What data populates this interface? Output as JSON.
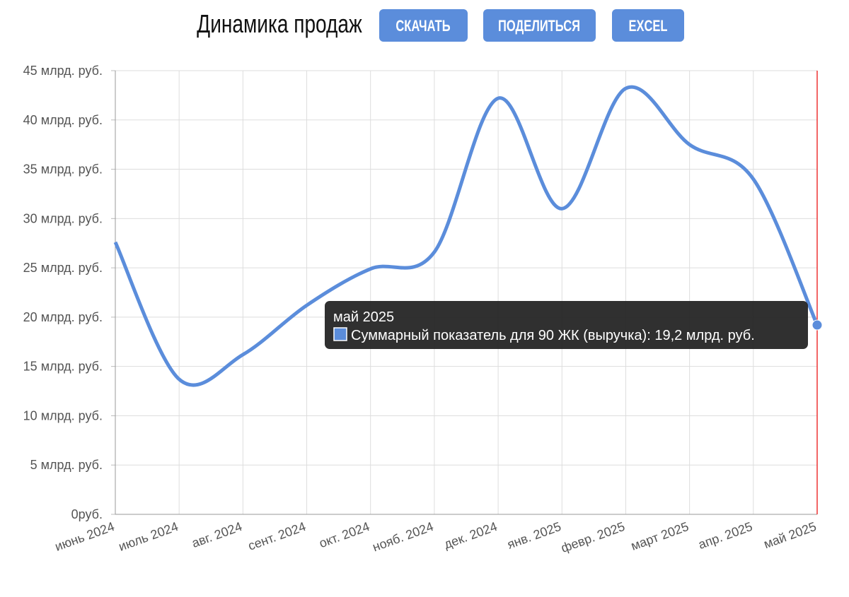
{
  "buttons": [
    "СКАЧАТЬ",
    "ПОДЕЛИТЬСЯ",
    "EXCEL"
  ],
  "chart_data": {
    "type": "line",
    "title": "Динамика продаж",
    "categories": [
      "июнь 2024",
      "июль 2024",
      "авг. 2024",
      "сент. 2024",
      "окт. 2024",
      "нояб. 2024",
      "дек. 2024",
      "янв. 2025",
      "февр. 2025",
      "март 2025",
      "апр. 2025",
      "май 2025"
    ],
    "values": [
      27.6,
      13.7,
      16.2,
      21.2,
      24.9,
      26.6,
      42.2,
      31.0,
      43.2,
      37.5,
      34.0,
      19.2
    ],
    "color": "#5b8ddb",
    "ylim": [
      0,
      45
    ],
    "yticks": [
      {
        "value": 0,
        "label": "0руб."
      },
      {
        "value": 5,
        "label": "5 млрд. руб."
      },
      {
        "value": 10,
        "label": "10 млрд. руб."
      },
      {
        "value": 15,
        "label": "15 млрд. руб."
      },
      {
        "value": 20,
        "label": "20 млрд. руб."
      },
      {
        "value": 25,
        "label": "25 млрд. руб."
      },
      {
        "value": 30,
        "label": "30 млрд. руб."
      },
      {
        "value": 35,
        "label": "35 млрд. руб."
      },
      {
        "value": 40,
        "label": "40 млрд. руб."
      },
      {
        "value": 45,
        "label": "45 млрд. руб."
      }
    ],
    "grid": true,
    "tooltip": {
      "text": "Суммарный показатель для 90 ЖК (выручка): 19,2 млрд. руб."
    }
  }
}
